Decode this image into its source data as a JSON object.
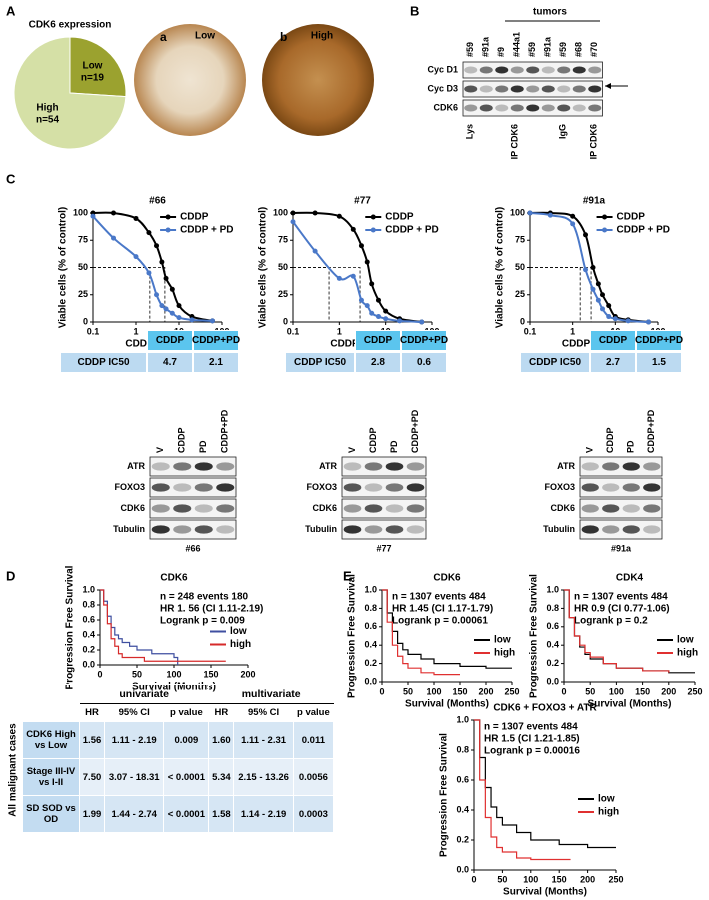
{
  "panel_labels": [
    "A",
    "B",
    "C",
    "D",
    "E"
  ],
  "panel_a": {
    "images": [
      {
        "letter": "a",
        "label": "Low"
      },
      {
        "letter": "b",
        "label": "High"
      }
    ]
  },
  "panel_b": {
    "header": "tumors",
    "lanes": [
      "#59",
      "#91a",
      "#9",
      "#44a1",
      "#59",
      "#91a",
      "#59",
      "#68",
      "#70"
    ],
    "rows": [
      "Cyc D1",
      "Cyc D3",
      "CDK6"
    ],
    "groups": [
      "Lys",
      "IP CDK6",
      "IgG",
      "IP CDK6"
    ]
  },
  "panel_c": {
    "tables": [
      {
        "headers": [
          "CDDP",
          "CDDP+PD"
        ],
        "row_label": "CDDP IC50",
        "values": [
          4.7,
          2.1
        ]
      },
      {
        "headers": [
          "CDDP",
          "CDDP+PD"
        ],
        "row_label": "CDDP IC50",
        "values": [
          2.8,
          0.6
        ]
      },
      {
        "headers": [
          "CDDP",
          "CDDP+PD"
        ],
        "row_label": "CDDP IC50",
        "values": [
          2.7,
          1.5
        ]
      }
    ],
    "blots": [
      {
        "lanes": [
          "V",
          "CDDP",
          "PD",
          "CDDP+PD"
        ],
        "rows": [
          "ATR",
          "FOXO3",
          "CDK6",
          "Tubulin"
        ],
        "caption": "#66"
      },
      {
        "lanes": [
          "V",
          "CDDP",
          "PD",
          "CDDP+PD"
        ],
        "rows": [
          "ATR",
          "FOXO3",
          "CDK6",
          "Tubulin"
        ],
        "caption": "#77"
      },
      {
        "lanes": [
          "V",
          "CDDP",
          "PD",
          "CDDP+PD"
        ],
        "rows": [
          "ATR",
          "FOXO3",
          "CDK6",
          "Tubulin"
        ],
        "caption": "#91a"
      }
    ]
  },
  "panel_d": {
    "table": {
      "side_label": "All malignant cases",
      "column_groups": [
        "univariate",
        "multivariate"
      ],
      "columns": [
        "HR",
        "95% CI",
        "p value",
        "HR",
        "95% CI",
        "p value"
      ],
      "rows": [
        [
          "CDK6 High vs Low",
          "1.56",
          "1.11 - 2.19",
          "0.009",
          "1.60",
          "1.11 - 2.31",
          "0.011"
        ],
        [
          "Stage III-IV vs I-II",
          "7.50",
          "3.07 - 18.31",
          "< 0.0001",
          "5.34",
          "2.15 - 13.26",
          "0.0056"
        ],
        [
          "SD SOD vs OD",
          "1.99",
          "1.44 - 2.74",
          "< 0.0001",
          "1.58",
          "1.14 - 2.19",
          "0.0003"
        ]
      ]
    }
  },
  "chart_data": [
    {
      "type": "pie",
      "title": "CDK6 expression",
      "categories": [
        "Low",
        "High"
      ],
      "values": [
        19,
        54
      ],
      "value_labels": [
        "n=19",
        "n=54"
      ],
      "colors": [
        "#9ba22f",
        "#d5e0a6"
      ]
    },
    {
      "type": "scatter",
      "connect": true,
      "title": "#66",
      "xlabel": "CDDP (ug/ml)",
      "ylabel": "Viable cells (% of control)",
      "log_x": true,
      "xlim": [
        0.1,
        100
      ],
      "ylim": [
        0,
        100
      ],
      "xticks": [
        0.1,
        1,
        10,
        100
      ],
      "yticks": [
        0,
        25,
        50,
        75,
        100
      ],
      "legend": "top-right",
      "x": [
        0.1,
        0.3,
        1,
        2,
        3,
        4,
        5,
        7,
        10,
        20,
        60
      ],
      "series": [
        {
          "name": "CDDP",
          "color": "#000000",
          "values": [
            100,
            100,
            95,
            82,
            70,
            55,
            40,
            30,
            15,
            5,
            1
          ]
        },
        {
          "name": "CDDP + PD",
          "color": "#4a78c8",
          "values": [
            97,
            77,
            60,
            45,
            25,
            15,
            12,
            8,
            4,
            2,
            1
          ]
        }
      ]
    },
    {
      "type": "scatter",
      "connect": true,
      "title": "#77",
      "xlabel": "CDDP (μg/ml)",
      "ylabel": "Viable cells (% of control)",
      "log_x": true,
      "xlim": [
        0.1,
        100
      ],
      "ylim": [
        0,
        100
      ],
      "xticks": [
        0.1,
        1,
        10,
        100
      ],
      "yticks": [
        0,
        25,
        50,
        75,
        100
      ],
      "legend": "top-right",
      "x": [
        0.1,
        0.3,
        1,
        2,
        3,
        4,
        5,
        7,
        10,
        20,
        60
      ],
      "series": [
        {
          "name": "CDDP",
          "color": "#000000",
          "values": [
            100,
            100,
            97,
            85,
            70,
            55,
            35,
            20,
            10,
            3,
            0
          ]
        },
        {
          "name": "CDDP + PD",
          "color": "#4a78c8",
          "values": [
            92,
            65,
            40,
            42,
            20,
            15,
            8,
            5,
            3,
            1,
            0
          ]
        }
      ]
    },
    {
      "type": "scatter",
      "connect": true,
      "title": "#91a",
      "xlabel": "CDDP (μg/ml)",
      "ylabel": "Viable cells (% of control)",
      "log_x": true,
      "xlim": [
        0.1,
        100
      ],
      "ylim": [
        0,
        100
      ],
      "xticks": [
        0.1,
        1,
        10,
        100
      ],
      "yticks": [
        0,
        25,
        50,
        75,
        100
      ],
      "legend": "top-right",
      "x": [
        0.1,
        0.3,
        1,
        2,
        3,
        4,
        5,
        7,
        10,
        20,
        60
      ],
      "series": [
        {
          "name": "CDDP",
          "color": "#000000",
          "values": [
            100,
            100,
            97,
            80,
            50,
            35,
            25,
            15,
            5,
            2,
            0
          ]
        },
        {
          "name": "CDDP + PD",
          "color": "#4a78c8",
          "values": [
            100,
            98,
            90,
            48,
            30,
            20,
            12,
            5,
            3,
            1,
            0
          ]
        }
      ]
    },
    {
      "type": "line",
      "step": true,
      "title": "CDK6",
      "xlabel": "Survival (Months)",
      "ylabel": "Progression Free Survival",
      "xlim": [
        0,
        200
      ],
      "ylim": [
        0,
        1
      ],
      "xticks": [
        0,
        50,
        100,
        150,
        200
      ],
      "yticks": [
        {
          "value": 0,
          "label": "0.0"
        },
        0.2,
        0.4,
        0.6,
        0.8,
        {
          "value": 1,
          "label": "1.0"
        }
      ],
      "legend": "right",
      "annotations": [
        "n = 248  events 180",
        "HR 1. 56 (CI 1.11-2.19)",
        "Logrank p = 0.009"
      ],
      "series": [
        {
          "name": "low",
          "color": "#3f4fa0",
          "x": [
            0,
            5,
            10,
            15,
            20,
            25,
            30,
            40,
            50,
            60,
            70,
            80,
            100,
            105
          ],
          "values": [
            1,
            0.85,
            0.65,
            0.5,
            0.4,
            0.35,
            0.3,
            0.25,
            0.2,
            0.2,
            0.15,
            0.15,
            0.1,
            0
          ]
        },
        {
          "name": "high",
          "color": "#d62a2a",
          "x": [
            0,
            5,
            10,
            15,
            20,
            25,
            30,
            40,
            60,
            80,
            100,
            170
          ],
          "values": [
            1,
            0.8,
            0.55,
            0.35,
            0.25,
            0.15,
            0.1,
            0.1,
            0.05,
            0.05,
            0.05,
            0.05
          ]
        }
      ]
    },
    {
      "type": "line",
      "step": true,
      "title": "CDK6",
      "xlabel": "Survival (Months)",
      "ylabel": "Progression Free Survival",
      "xlim": [
        0,
        250
      ],
      "ylim": [
        0,
        1
      ],
      "xticks": [
        0,
        50,
        100,
        150,
        200,
        250
      ],
      "yticks": [
        {
          "value": 0,
          "label": "0.0"
        },
        0.2,
        0.4,
        0.6,
        0.8,
        {
          "value": 1,
          "label": "1.0"
        }
      ],
      "legend": "right",
      "annotations": [
        "n = 1307  events 484",
        "HR 1.45 (CI 1.17-1.79)",
        "Logrank p = 0.00061"
      ],
      "series": [
        {
          "name": "low",
          "color": "#000000",
          "x": [
            0,
            10,
            20,
            30,
            40,
            50,
            75,
            100,
            150,
            200,
            250
          ],
          "values": [
            1,
            0.75,
            0.55,
            0.42,
            0.35,
            0.3,
            0.25,
            0.2,
            0.17,
            0.15,
            0.15
          ]
        },
        {
          "name": "high",
          "color": "#e03030",
          "x": [
            0,
            10,
            20,
            30,
            40,
            50,
            75,
            100,
            150
          ],
          "values": [
            1,
            0.65,
            0.4,
            0.28,
            0.2,
            0.15,
            0.1,
            0.08,
            0.08
          ]
        }
      ]
    },
    {
      "type": "line",
      "step": true,
      "title": "CDK4",
      "xlabel": "Survival (Months)",
      "ylabel": "Progression Free Survival",
      "xlim": [
        0,
        250
      ],
      "ylim": [
        0,
        1
      ],
      "xticks": [
        0,
        50,
        100,
        150,
        200,
        250
      ],
      "yticks": [
        {
          "value": 0,
          "label": "0.0"
        },
        0.2,
        0.4,
        0.6,
        0.8,
        {
          "value": 1,
          "label": "1.0"
        }
      ],
      "legend": "right",
      "annotations": [
        "n = 1307  events 484",
        "HR 0.9 (CI 0.77-1.06)",
        "Logrank p = 0.2"
      ],
      "series": [
        {
          "name": "low",
          "color": "#000000",
          "x": [
            0,
            10,
            20,
            30,
            40,
            50,
            75,
            100,
            150,
            200,
            250
          ],
          "values": [
            1,
            0.7,
            0.5,
            0.38,
            0.3,
            0.25,
            0.2,
            0.15,
            0.12,
            0.1,
            0.1
          ]
        },
        {
          "name": "high",
          "color": "#e03030",
          "x": [
            0,
            10,
            20,
            30,
            40,
            50,
            75,
            100,
            150,
            200
          ],
          "values": [
            1,
            0.7,
            0.5,
            0.4,
            0.32,
            0.27,
            0.2,
            0.15,
            0.12,
            0.1
          ]
        }
      ]
    },
    {
      "type": "line",
      "step": true,
      "title": "CDK6 + FOXO3 + ATR",
      "xlabel": "Survival (Months)",
      "ylabel": "Progression Free Survival",
      "xlim": [
        0,
        250
      ],
      "ylim": [
        0,
        1
      ],
      "xticks": [
        0,
        50,
        100,
        150,
        200,
        250
      ],
      "yticks": [
        {
          "value": 0,
          "label": "0.0"
        },
        0.2,
        0.4,
        0.6,
        0.8,
        {
          "value": 1,
          "label": "1.0"
        }
      ],
      "legend": "right",
      "annotations": [
        "n = 1307  events 484",
        "HR 1.5 (CI 1.21-1.85)",
        "Logrank p = 0.00016"
      ],
      "series": [
        {
          "name": "low",
          "color": "#000000",
          "x": [
            0,
            10,
            20,
            30,
            40,
            50,
            75,
            100,
            150,
            200,
            250
          ],
          "values": [
            1,
            0.75,
            0.55,
            0.42,
            0.35,
            0.3,
            0.25,
            0.2,
            0.17,
            0.15,
            0.15
          ]
        },
        {
          "name": "high",
          "color": "#e03030",
          "x": [
            0,
            10,
            20,
            30,
            40,
            50,
            75,
            100,
            150,
            170
          ],
          "values": [
            1,
            0.6,
            0.35,
            0.22,
            0.15,
            0.12,
            0.08,
            0.07,
            0.07,
            0.07
          ]
        }
      ]
    }
  ]
}
